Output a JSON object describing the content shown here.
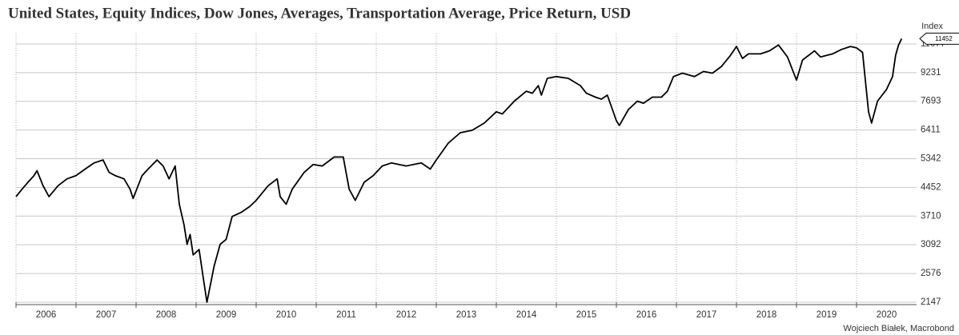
{
  "chart_data": {
    "type": "line",
    "title": "United States, Equity Indices, Dow Jones, Averages, Transportation Average, Price Return, USD",
    "y_label": "Index",
    "source": "Wojciech Białek, Macrobond",
    "log_y": true,
    "grid": true,
    "xlim": [
      2006,
      2021
    ],
    "xticks": [
      {
        "value": 2006.5,
        "label": "2006"
      },
      {
        "value": 2007.5,
        "label": "2007"
      },
      {
        "value": 2008.5,
        "label": "2008"
      },
      {
        "value": 2009.5,
        "label": "2009"
      },
      {
        "value": 2010.5,
        "label": "2010"
      },
      {
        "value": 2011.5,
        "label": "2011"
      },
      {
        "value": 2012.5,
        "label": "2012"
      },
      {
        "value": 2013.5,
        "label": "2013"
      },
      {
        "value": 2014.5,
        "label": "2014"
      },
      {
        "value": 2015.5,
        "label": "2015"
      },
      {
        "value": 2016.5,
        "label": "2016"
      },
      {
        "value": 2017.5,
        "label": "2017"
      },
      {
        "value": 2018.5,
        "label": "2018"
      },
      {
        "value": 2019.5,
        "label": "2019"
      },
      {
        "value": 2020.5,
        "label": "2020"
      }
    ],
    "ylim": [
      2114,
      11830
    ],
    "yticks": [
      2147,
      2576,
      3092,
      3710,
      4452,
      5342,
      6411,
      7693,
      9231,
      11077
    ],
    "end_label": 11452,
    "series": [
      {
        "color": "#000000",
        "x": [
          2006.0,
          2006.1,
          2006.2,
          2006.3,
          2006.35,
          2006.45,
          2006.55,
          2006.7,
          2006.85,
          2007.0,
          2007.15,
          2007.3,
          2007.45,
          2007.55,
          2007.65,
          2007.8,
          2007.9,
          2007.95,
          2008.1,
          2008.2,
          2008.35,
          2008.45,
          2008.55,
          2008.65,
          2008.72,
          2008.8,
          2008.85,
          2008.9,
          2008.95,
          2009.05,
          2009.12,
          2009.18,
          2009.3,
          2009.4,
          2009.5,
          2009.6,
          2009.75,
          2009.9,
          2010.0,
          2010.2,
          2010.35,
          2010.4,
          2010.5,
          2010.6,
          2010.8,
          2010.95,
          2011.1,
          2011.3,
          2011.45,
          2011.55,
          2011.65,
          2011.8,
          2011.95,
          2012.1,
          2012.25,
          2012.5,
          2012.75,
          2012.9,
          2013.0,
          2013.2,
          2013.4,
          2013.6,
          2013.8,
          2014.0,
          2014.1,
          2014.3,
          2014.5,
          2014.6,
          2014.7,
          2014.75,
          2014.85,
          2015.0,
          2015.2,
          2015.4,
          2015.5,
          2015.65,
          2015.75,
          2015.85,
          2016.0,
          2016.05,
          2016.2,
          2016.35,
          2016.45,
          2016.6,
          2016.75,
          2016.85,
          2016.95,
          2017.1,
          2017.3,
          2017.45,
          2017.6,
          2017.75,
          2017.9,
          2018.0,
          2018.1,
          2018.2,
          2018.4,
          2018.55,
          2018.7,
          2018.85,
          2019.0,
          2019.1,
          2019.3,
          2019.4,
          2019.6,
          2019.75,
          2019.9,
          2020.0,
          2020.1,
          2020.2,
          2020.25,
          2020.35,
          2020.5,
          2020.6,
          2020.65,
          2020.7,
          2020.75
        ],
        "values": [
          4200,
          4400,
          4600,
          4800,
          4950,
          4500,
          4200,
          4500,
          4700,
          4800,
          5000,
          5200,
          5300,
          4900,
          4800,
          4700,
          4400,
          4150,
          4800,
          5000,
          5300,
          5100,
          4700,
          5100,
          4000,
          3500,
          3100,
          3300,
          2900,
          3000,
          2500,
          2147,
          2700,
          3100,
          3200,
          3700,
          3800,
          3950,
          4100,
          4500,
          4700,
          4200,
          4000,
          4400,
          4900,
          5150,
          5100,
          5400,
          5400,
          4400,
          4100,
          4600,
          4800,
          5100,
          5200,
          5100,
          5200,
          5000,
          5300,
          5900,
          6300,
          6400,
          6700,
          7200,
          7100,
          7700,
          8200,
          8100,
          8500,
          8000,
          8900,
          9000,
          8900,
          8500,
          8100,
          7900,
          7800,
          8000,
          6800,
          6600,
          7300,
          7700,
          7600,
          7900,
          7900,
          8200,
          9000,
          9200,
          9000,
          9300,
          9200,
          9600,
          10300,
          10900,
          10100,
          10400,
          10400,
          10600,
          11000,
          10200,
          8800,
          10000,
          10600,
          10200,
          10400,
          10700,
          10900,
          10800,
          10500,
          7200,
          6700,
          7700,
          8300,
          9000,
          10300,
          11000,
          11452
        ]
      }
    ]
  }
}
